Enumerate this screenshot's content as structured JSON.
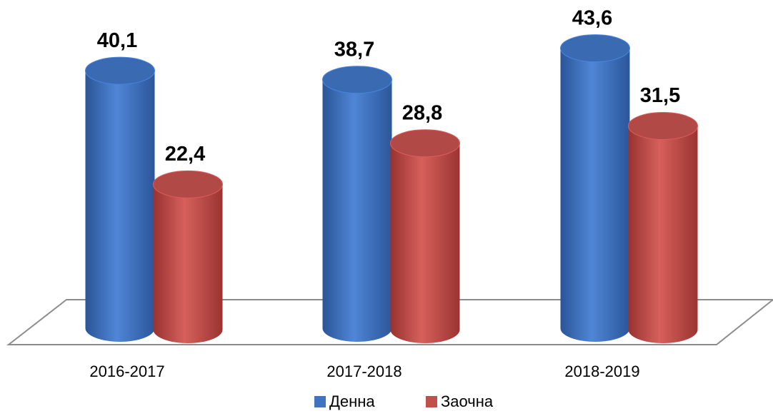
{
  "chart_data": {
    "type": "bar3d",
    "categories": [
      "2016-2017",
      "2017-2018",
      "2018-2019"
    ],
    "series": [
      {
        "name": "Денна",
        "color": "#3f74c2",
        "values": [
          40.1,
          38.7,
          43.6
        ],
        "value_labels": [
          "40,1",
          "38,7",
          "43,6"
        ]
      },
      {
        "name": "Заочна",
        "color": "#c0504d",
        "values": [
          22.4,
          28.8,
          31.5
        ],
        "value_labels": [
          "22,4",
          "28,8",
          "31,5"
        ]
      }
    ],
    "ylim": [
      0,
      45
    ],
    "legend": "bottom"
  }
}
